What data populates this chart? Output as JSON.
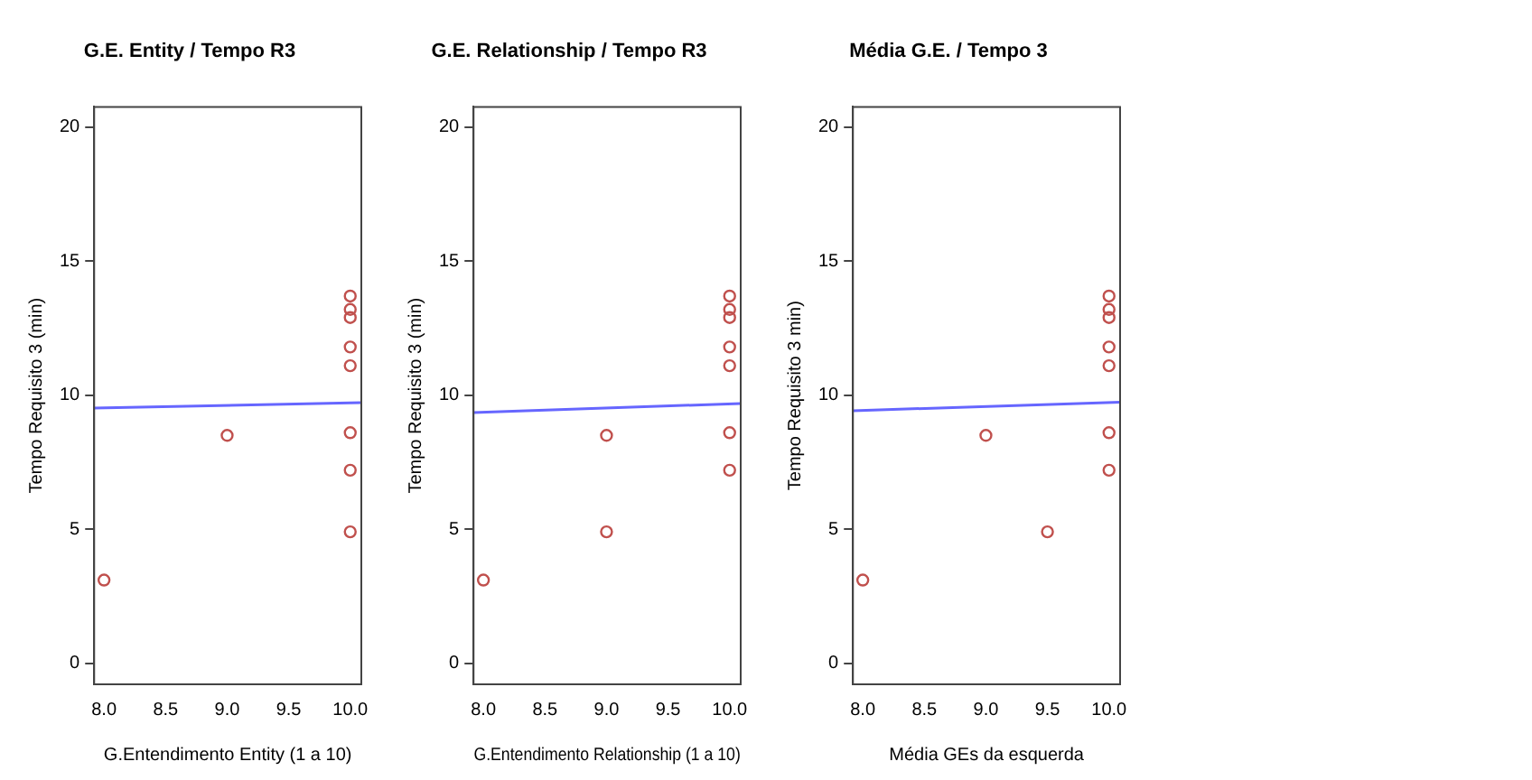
{
  "chart_data": [
    {
      "type": "scatter",
      "title": "G.E. Entity / Tempo R3",
      "xlabel": "G.Entendimento Entity (1 a 10)",
      "ylabel": "Tempo Requisito 3 (min)",
      "xlim": [
        7.92,
        10.09
      ],
      "ylim": [
        -0.79,
        20.76
      ],
      "xticks": [
        {
          "value": 8,
          "label": "8.0"
        },
        {
          "value": 8.5,
          "label": "8.5"
        },
        {
          "value": 9,
          "label": "9.0"
        },
        {
          "value": 9.5,
          "label": "9.5"
        },
        {
          "value": 10,
          "label": "10.0"
        }
      ],
      "yticks": [
        0,
        5,
        10,
        15,
        20
      ],
      "grid": false,
      "legend": false,
      "series": [
        {
          "marker": "circle",
          "color": "#c0504d",
          "x": [
            8,
            9,
            10,
            10,
            10,
            10,
            10,
            10,
            10,
            10
          ],
          "values": [
            3.1,
            8.5,
            13.7,
            13.2,
            12.9,
            11.8,
            11.1,
            8.6,
            7.2,
            4.9
          ]
        },
        {
          "type": "line",
          "marker": "none",
          "color": "#6666ff",
          "x": [
            7.92,
            10.09
          ],
          "values": [
            9.52,
            9.72
          ]
        }
      ]
    },
    {
      "type": "scatter",
      "title": "G.E. Relationship / Tempo R3",
      "xlabel": "G.Entendimento Relationship (1 a 10)",
      "ylabel": "Tempo Requisito 3 (min)",
      "xlim": [
        7.92,
        10.09
      ],
      "ylim": [
        -0.79,
        20.76
      ],
      "xticks": [
        {
          "value": 8,
          "label": "8.0"
        },
        {
          "value": 8.5,
          "label": "8.5"
        },
        {
          "value": 9,
          "label": "9.0"
        },
        {
          "value": 9.5,
          "label": "9.5"
        },
        {
          "value": 10,
          "label": "10.0"
        }
      ],
      "yticks": [
        0,
        5,
        10,
        15,
        20
      ],
      "grid": false,
      "legend": false,
      "series": [
        {
          "marker": "circle",
          "color": "#c0504d",
          "x": [
            8,
            9,
            9,
            10,
            10,
            10,
            10,
            10,
            10,
            10
          ],
          "values": [
            3.1,
            8.5,
            4.9,
            13.7,
            13.2,
            12.9,
            11.8,
            11.1,
            8.6,
            7.2
          ]
        },
        {
          "type": "line",
          "marker": "none",
          "color": "#6666ff",
          "x": [
            7.92,
            10.09
          ],
          "values": [
            9.35,
            9.69
          ]
        }
      ]
    },
    {
      "type": "scatter",
      "title": "Média G.E. / Tempo 3",
      "xlabel": "Média GEs da esquerda",
      "ylabel": "Tempo Requisito 3 min)",
      "xlim": [
        7.92,
        10.09
      ],
      "ylim": [
        -0.79,
        20.76
      ],
      "xticks": [
        {
          "value": 8,
          "label": "8.0"
        },
        {
          "value": 8.5,
          "label": "8.5"
        },
        {
          "value": 9,
          "label": "9.0"
        },
        {
          "value": 9.5,
          "label": "9.5"
        },
        {
          "value": 10,
          "label": "10.0"
        }
      ],
      "yticks": [
        0,
        5,
        10,
        15,
        20
      ],
      "grid": false,
      "legend": false,
      "series": [
        {
          "marker": "circle",
          "color": "#c0504d",
          "x": [
            8,
            9,
            9.5,
            10,
            10,
            10,
            10,
            10,
            10,
            10
          ],
          "values": [
            3.1,
            8.5,
            4.9,
            13.7,
            13.2,
            12.9,
            11.8,
            11.1,
            8.6,
            7.2
          ]
        },
        {
          "type": "line",
          "marker": "none",
          "color": "#6666ff",
          "x": [
            7.92,
            10.09
          ],
          "values": [
            9.42,
            9.74
          ]
        }
      ]
    }
  ]
}
